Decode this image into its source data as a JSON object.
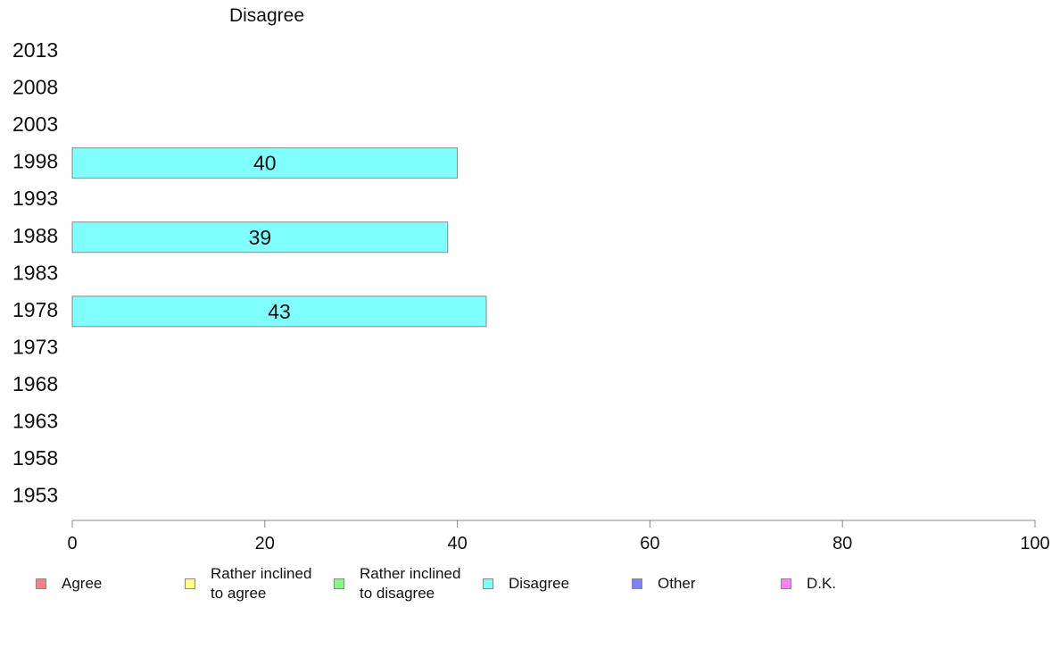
{
  "chart_data": {
    "type": "bar",
    "orientation": "horizontal",
    "title": "Disagree",
    "xlabel": "",
    "ylabel": "",
    "xlim": [
      0,
      100
    ],
    "x_ticks": [
      0,
      20,
      40,
      60,
      80,
      100
    ],
    "categories": [
      "2013",
      "2008",
      "2003",
      "1998",
      "1993",
      "1988",
      "1983",
      "1978",
      "1973",
      "1968",
      "1963",
      "1958",
      "1953"
    ],
    "series": [
      {
        "name": "Disagree",
        "color": "#80ffff",
        "values": [
          null,
          null,
          null,
          40,
          null,
          39,
          null,
          43,
          null,
          null,
          null,
          null,
          null
        ],
        "labels": [
          "",
          "",
          "",
          "40",
          "",
          "39",
          "",
          "43",
          "",
          "",
          "",
          "",
          ""
        ]
      }
    ],
    "grid": false,
    "legend_placement": "bottom",
    "legend": [
      {
        "label": "Agree",
        "color": "#ff8080"
      },
      {
        "label": "Rather inclined\nto agree",
        "color": "#ffff80"
      },
      {
        "label": "Rather inclined\nto disagree",
        "color": "#80ff80"
      },
      {
        "label": "Disagree",
        "color": "#80ffff"
      },
      {
        "label": "Other",
        "color": "#8080ff"
      },
      {
        "label": "D.K.",
        "color": "#ff80ff"
      }
    ]
  }
}
